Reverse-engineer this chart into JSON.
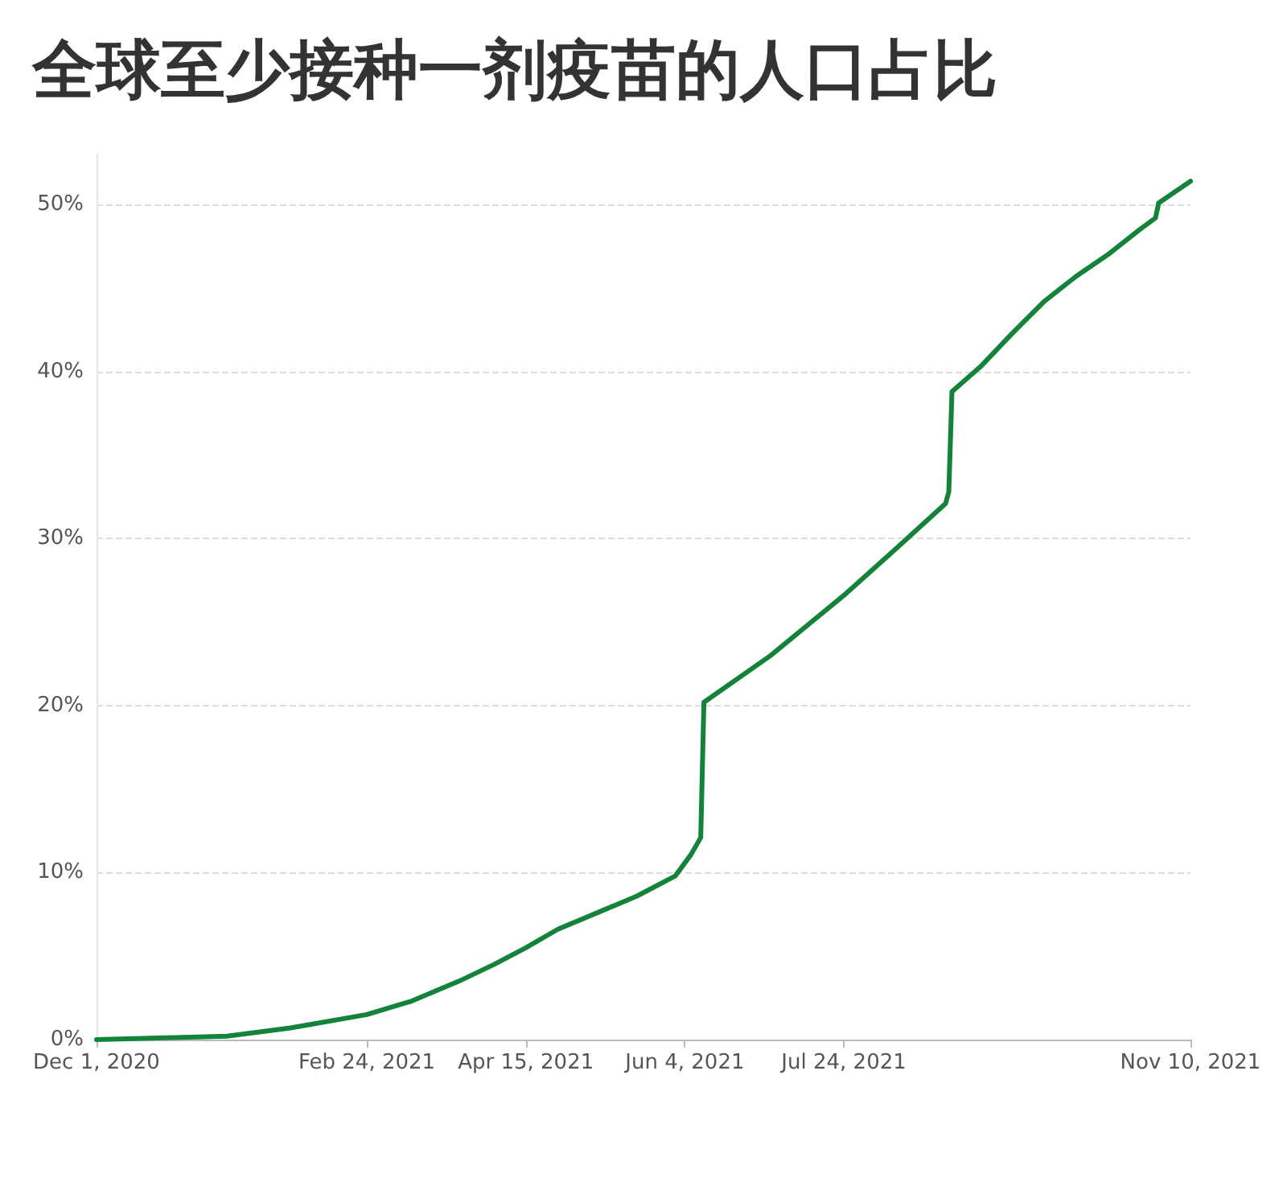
{
  "chart_data": {
    "type": "line",
    "title": "全球至少接种一剂疫苗的人口占比",
    "x": [
      "2020-12-01",
      "2020-12-20",
      "2021-01-11",
      "2021-01-31",
      "2021-02-24",
      "2021-03-10",
      "2021-03-25",
      "2021-04-05",
      "2021-04-15",
      "2021-04-25",
      "2021-05-10",
      "2021-05-20",
      "2021-06-01",
      "2021-06-06",
      "2021-06-09",
      "2021-06-10",
      "2021-07-01",
      "2021-07-24",
      "2021-08-10",
      "2021-08-25",
      "2021-08-26",
      "2021-08-27",
      "2021-09-05",
      "2021-09-15",
      "2021-09-25",
      "2021-10-05",
      "2021-10-15",
      "2021-10-25",
      "2021-10-30",
      "2021-10-31",
      "2021-11-10"
    ],
    "series": [
      {
        "color": "#13833a",
        "values": [
          0,
          0.1,
          0.2,
          0.7,
          1.5,
          2.3,
          3.5,
          4.5,
          5.5,
          6.6,
          7.8,
          8.6,
          9.8,
          11.1,
          12.1,
          20.2,
          23.0,
          26.6,
          29.5,
          32.1,
          32.8,
          38.8,
          40.3,
          42.3,
          44.2,
          45.7,
          47.0,
          48.5,
          49.2,
          50.1,
          51.4
        ]
      }
    ],
    "xlim": [
      "2020-12-01",
      "2021-11-10"
    ],
    "xticks": [
      {
        "value": "2020-12-01",
        "label": "Dec 1, 2020"
      },
      {
        "value": "2021-02-24",
        "label": "Feb 24, 2021"
      },
      {
        "value": "2021-04-15",
        "label": "Apr 15, 2021"
      },
      {
        "value": "2021-06-04",
        "label": "Jun 4, 2021"
      },
      {
        "value": "2021-07-24",
        "label": "Jul 24, 2021"
      },
      {
        "value": "2021-11-10",
        "label": "Nov 10, 2021"
      }
    ],
    "ylim": [
      0,
      53
    ],
    "yticks": [
      {
        "value": 0,
        "label": "0%"
      },
      {
        "value": 10,
        "label": "10%"
      },
      {
        "value": 20,
        "label": "20%"
      },
      {
        "value": 30,
        "label": "30%"
      },
      {
        "value": 40,
        "label": "40%"
      },
      {
        "value": 50,
        "label": "50%"
      }
    ],
    "grid": "y",
    "marker": "none",
    "line_style": "solid"
  }
}
